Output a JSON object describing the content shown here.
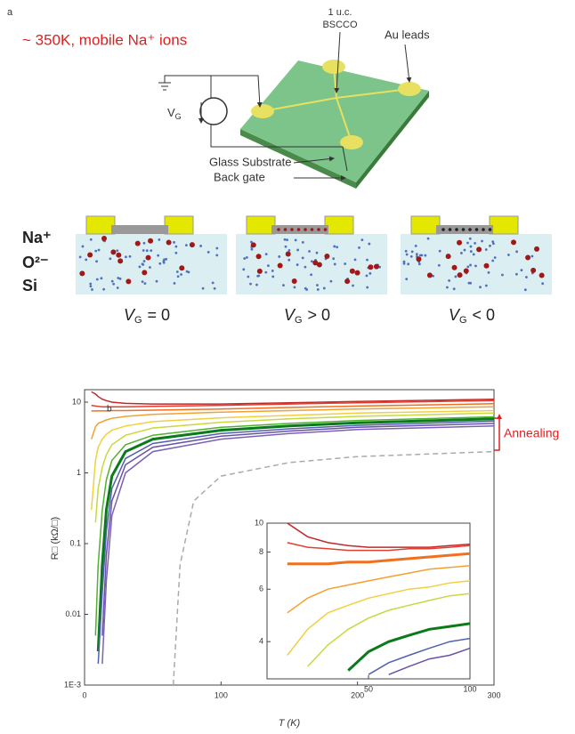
{
  "diagram": {
    "panel_label": "a",
    "condition": "~ 350K, mobile Na⁺ ions",
    "sample_line1": "1 u.c.",
    "sample_line2": "BSCCO",
    "leads": "Au leads",
    "source_main": "V",
    "source_sub": "G",
    "substrate": "Glass Substrate",
    "gate": "Back gate",
    "layers": [
      "Na⁺",
      "O²⁻",
      "Si"
    ],
    "states": [
      {
        "main": "V",
        "sub": "G",
        "relation": "= 0"
      },
      {
        "main": "V",
        "sub": "G",
        "relation": "> 0"
      },
      {
        "main": "V",
        "sub": "G",
        "relation": "< 0"
      }
    ]
  },
  "chart_data": [
    {
      "type": "line",
      "panel_label": "b",
      "xlabel": "T (K)",
      "ylabel": "R□ (kΩ/□)",
      "annotation": "Annealing",
      "log_y": true,
      "xlim": [
        0,
        300
      ],
      "ylim": [
        0.001,
        15
      ],
      "xticks": [
        0,
        100,
        200,
        300
      ],
      "yticks": [
        {
          "value": 0.001,
          "label": "1E-3"
        },
        0.01,
        0.1,
        1,
        10
      ],
      "x": [
        5,
        8,
        10,
        13,
        16,
        20,
        30,
        50,
        100,
        150,
        200,
        300
      ],
      "series": [
        {
          "color": "#c0282a",
          "values": [
            14,
            13,
            12,
            11,
            10.5,
            10,
            9.6,
            9.4,
            9.4,
            9.8,
            10.2,
            11
          ]
        },
        {
          "color": "#e04030",
          "values": [
            9,
            8.8,
            8.7,
            8.6,
            8.6,
            8.6,
            8.6,
            8.7,
            9,
            9.4,
            9.8,
            10.5
          ]
        },
        {
          "color": "#f07020",
          "values": [
            7.5,
            7.5,
            7.5,
            7.5,
            7.5,
            7.6,
            7.6,
            7.7,
            8,
            8.4,
            8.8,
            9.5
          ]
        },
        {
          "color": "#f5a030",
          "values": [
            3,
            4.5,
            5,
            5.3,
            5.6,
            5.9,
            6.3,
            6.7,
            7.2,
            7.6,
            8,
            8.6
          ]
        },
        {
          "color": "#f0d040",
          "values": [
            0.3,
            1.5,
            2.3,
            3,
            3.5,
            4,
            4.6,
            5.3,
            6,
            6.5,
            7,
            7.6
          ]
        },
        {
          "color": "#c8d840",
          "values": [
            null,
            0.2,
            0.6,
            1.2,
            1.8,
            2.5,
            3.4,
            4.3,
            5.2,
            5.8,
            6.3,
            7
          ]
        },
        {
          "color": "#50b030",
          "values": [
            null,
            0.005,
            0.05,
            0.3,
            0.8,
            1.5,
            2.5,
            3.4,
            4.4,
            5,
            5.5,
            6.2
          ]
        },
        {
          "color": "#0a7a1a",
          "width": 3,
          "values": [
            null,
            null,
            0.003,
            0.05,
            0.3,
            0.9,
            2,
            3,
            4,
            4.6,
            5.1,
            5.8
          ]
        },
        {
          "color": "#5060b0",
          "values": [
            null,
            null,
            0.002,
            0.02,
            0.15,
            0.6,
            1.6,
            2.6,
            3.6,
            4.2,
            4.7,
            5.4
          ]
        },
        {
          "color": "#6a50a8",
          "values": [
            null,
            null,
            null,
            0.005,
            0.07,
            0.4,
            1.3,
            2.3,
            3.3,
            3.9,
            4.4,
            5
          ]
        },
        {
          "color": "#7a60b8",
          "values": [
            null,
            null,
            null,
            0.002,
            0.03,
            0.25,
            1.0,
            2,
            3,
            3.6,
            4.1,
            4.6
          ]
        },
        {
          "color": "#aaaaaa",
          "linestyle": "dashed",
          "x": [
            65,
            70,
            80,
            100,
            150,
            200,
            300
          ],
          "values": [
            0.001,
            0.05,
            0.4,
            0.9,
            1.4,
            1.7,
            2
          ]
        }
      ]
    },
    {
      "type": "line",
      "log_y": true,
      "xlim": [
        0,
        100
      ],
      "ylim": [
        3,
        10
      ],
      "xticks": [
        50,
        100
      ],
      "yticks": [
        4,
        6,
        8,
        10
      ],
      "x": [
        10,
        20,
        30,
        40,
        50,
        60,
        70,
        80,
        90,
        100
      ],
      "series": [
        {
          "color": "#c0282a",
          "values": [
            10,
            9,
            8.6,
            8.4,
            8.3,
            8.3,
            8.3,
            8.3,
            8.4,
            8.5
          ]
        },
        {
          "color": "#e04030",
          "values": [
            8.6,
            8.3,
            8.2,
            8.1,
            8.1,
            8.1,
            8.2,
            8.2,
            8.3,
            8.4
          ]
        },
        {
          "color": "#f07020",
          "width": 3,
          "values": [
            7.3,
            7.3,
            7.3,
            7.4,
            7.4,
            7.5,
            7.6,
            7.7,
            7.8,
            7.9
          ]
        },
        {
          "color": "#f5a030",
          "values": [
            5,
            5.6,
            6,
            6.2,
            6.4,
            6.6,
            6.8,
            7,
            7.1,
            7.2
          ]
        },
        {
          "color": "#f0d040",
          "values": [
            3.6,
            4.4,
            5,
            5.3,
            5.6,
            5.8,
            6,
            6.1,
            6.3,
            6.4
          ]
        },
        {
          "color": "#c8d840",
          "values": [
            null,
            3.3,
            3.9,
            4.4,
            4.8,
            5.1,
            5.3,
            5.5,
            5.7,
            5.8
          ]
        },
        {
          "color": "#0a7a1a",
          "width": 3,
          "values": [
            null,
            null,
            null,
            3.2,
            3.7,
            4,
            4.2,
            4.4,
            4.5,
            4.6
          ]
        },
        {
          "color": "#5060b0",
          "values": [
            null,
            null,
            null,
            null,
            3.1,
            3.4,
            3.6,
            3.8,
            4,
            4.1
          ]
        },
        {
          "color": "#6a50a8",
          "values": [
            null,
            null,
            null,
            null,
            null,
            3.1,
            3.3,
            3.5,
            3.6,
            3.8
          ]
        }
      ]
    }
  ]
}
